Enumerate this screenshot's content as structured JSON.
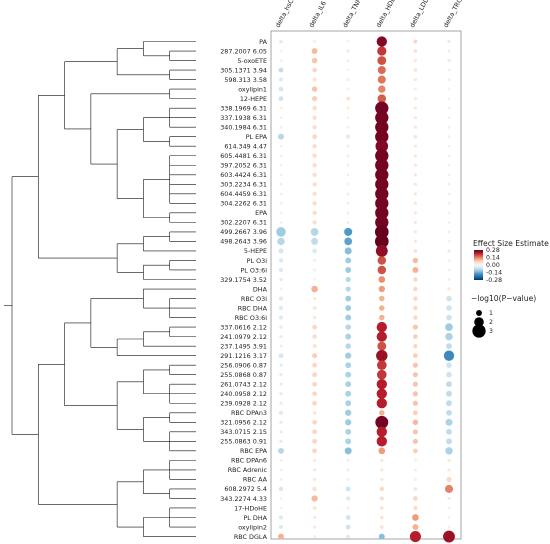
{
  "chart_data": {
    "type": "heatmap",
    "columns": [
      "delta_hsCRP",
      "delta_IL6",
      "delta_TNFR2",
      "delta_HDLC",
      "delta_LDLC",
      "delta_TRG"
    ],
    "rows": [
      {
        "label": "PA",
        "effect": [
          -0.03,
          0.02,
          0.01,
          0.26,
          0.06,
          0.03
        ],
        "logp": [
          0.4,
          0.2,
          0.2,
          2.2,
          0.5,
          0.3
        ]
      },
      {
        "label": "287.2007_6.05",
        "effect": [
          0.01,
          0.09,
          0.03,
          0.2,
          0.04,
          -0.02
        ],
        "logp": [
          0.2,
          1.0,
          0.3,
          1.9,
          0.4,
          0.2
        ]
      },
      {
        "label": "5-oxoETE",
        "effect": [
          0.02,
          0.08,
          0.02,
          0.18,
          0.03,
          0.03
        ],
        "logp": [
          0.2,
          0.9,
          0.2,
          1.8,
          0.3,
          0.3
        ]
      },
      {
        "label": "305.1371_3.94",
        "effect": [
          -0.07,
          0.06,
          0.01,
          0.16,
          0.04,
          0.02
        ],
        "logp": [
          0.7,
          0.7,
          0.2,
          1.6,
          0.4,
          0.2
        ]
      },
      {
        "label": "598.313_3.58",
        "effect": [
          -0.04,
          0.04,
          0.02,
          0.15,
          0.03,
          0.02
        ],
        "logp": [
          0.5,
          0.5,
          0.2,
          1.6,
          0.3,
          0.2
        ]
      },
      {
        "label": "oxylipin1",
        "effect": [
          -0.05,
          0.08,
          0.01,
          0.14,
          0.02,
          0.01
        ],
        "logp": [
          0.7,
          0.9,
          0.2,
          1.4,
          0.2,
          0.2
        ]
      },
      {
        "label": "12-HEPE",
        "effect": [
          -0.06,
          0.07,
          0.05,
          0.17,
          0.03,
          0.02
        ],
        "logp": [
          0.7,
          0.8,
          0.4,
          1.7,
          0.3,
          0.2
        ]
      },
      {
        "label": "338.1969_6.31",
        "effect": [
          0.02,
          0.05,
          0.02,
          0.27,
          0.03,
          0.02
        ],
        "logp": [
          0.2,
          0.6,
          0.2,
          3.0,
          0.3,
          0.2
        ]
      },
      {
        "label": "337.1938_6.31",
        "effect": [
          0.02,
          0.05,
          0.02,
          0.27,
          0.03,
          0.02
        ],
        "logp": [
          0.2,
          0.6,
          0.2,
          3.0,
          0.3,
          0.2
        ]
      },
      {
        "label": "340.1984_6.31",
        "effect": [
          0.02,
          0.05,
          0.02,
          0.27,
          0.03,
          0.02
        ],
        "logp": [
          0.2,
          0.6,
          0.2,
          3.0,
          0.3,
          0.2
        ]
      },
      {
        "label": "PL_EPA",
        "effect": [
          -0.08,
          0.06,
          -0.04,
          0.27,
          0.04,
          0.02
        ],
        "logp": [
          1.0,
          0.7,
          0.5,
          3.0,
          0.4,
          0.2
        ]
      },
      {
        "label": "614.349_4.47",
        "effect": [
          0.02,
          0.05,
          0.02,
          0.26,
          0.03,
          0.02
        ],
        "logp": [
          0.2,
          0.6,
          0.2,
          2.8,
          0.3,
          0.2
        ]
      },
      {
        "label": "605.4481_6.31",
        "effect": [
          0.02,
          0.05,
          0.02,
          0.27,
          0.03,
          0.02
        ],
        "logp": [
          0.2,
          0.6,
          0.2,
          3.0,
          0.3,
          0.2
        ]
      },
      {
        "label": "397.2052_6.31",
        "effect": [
          0.02,
          0.05,
          0.02,
          0.27,
          0.03,
          0.02
        ],
        "logp": [
          0.2,
          0.6,
          0.2,
          3.0,
          0.3,
          0.2
        ]
      },
      {
        "label": "603.4424_6.31",
        "effect": [
          0.02,
          0.05,
          0.02,
          0.27,
          0.03,
          0.02
        ],
        "logp": [
          0.2,
          0.6,
          0.2,
          3.0,
          0.3,
          0.2
        ]
      },
      {
        "label": "303.2234_6.31",
        "effect": [
          0.02,
          0.05,
          0.02,
          0.27,
          0.03,
          0.02
        ],
        "logp": [
          0.2,
          0.6,
          0.2,
          3.0,
          0.3,
          0.2
        ]
      },
      {
        "label": "604.4459_6.31",
        "effect": [
          0.02,
          0.05,
          0.02,
          0.27,
          0.03,
          0.02
        ],
        "logp": [
          0.2,
          0.6,
          0.2,
          3.0,
          0.3,
          0.2
        ]
      },
      {
        "label": "304.2262_6.31",
        "effect": [
          0.02,
          0.05,
          0.02,
          0.27,
          0.03,
          0.02
        ],
        "logp": [
          0.2,
          0.6,
          0.2,
          3.0,
          0.3,
          0.2
        ]
      },
      {
        "label": "EPA",
        "effect": [
          0.02,
          0.05,
          0.02,
          0.27,
          0.03,
          0.02
        ],
        "logp": [
          0.2,
          0.6,
          0.2,
          3.0,
          0.3,
          0.2
        ]
      },
      {
        "label": "302.2207_6.31",
        "effect": [
          0.02,
          0.05,
          0.02,
          0.27,
          0.03,
          0.02
        ],
        "logp": [
          0.2,
          0.6,
          0.2,
          3.0,
          0.3,
          0.2
        ]
      },
      {
        "label": "499.2667_3.96",
        "effect": [
          -0.1,
          -0.08,
          -0.16,
          0.28,
          0.03,
          0.02
        ],
        "logp": [
          2.0,
          1.5,
          1.6,
          3.1,
          0.3,
          0.2
        ]
      },
      {
        "label": "498.2643_3.96",
        "effect": [
          -0.08,
          -0.07,
          -0.15,
          0.28,
          0.03,
          0.02
        ],
        "logp": [
          1.4,
          1.3,
          1.5,
          3.1,
          0.3,
          0.2
        ]
      },
      {
        "label": "5-HEPE",
        "effect": [
          -0.05,
          -0.04,
          -0.12,
          0.25,
          0.04,
          0.03
        ],
        "logp": [
          0.8,
          0.7,
          1.3,
          2.6,
          0.4,
          0.3
        ]
      },
      {
        "label": "PL_O3i",
        "effect": [
          -0.04,
          0.02,
          -0.1,
          0.18,
          0.09,
          0.02
        ],
        "logp": [
          0.6,
          0.2,
          1.0,
          1.7,
          0.9,
          0.2
        ]
      },
      {
        "label": "PL_O3:6i",
        "effect": [
          -0.04,
          0.02,
          -0.1,
          0.18,
          0.1,
          0.02
        ],
        "logp": [
          0.6,
          0.2,
          1.0,
          1.7,
          1.0,
          0.2
        ]
      },
      {
        "label": "329.1754_3.52",
        "effect": [
          -0.03,
          0.01,
          -0.08,
          0.13,
          0.06,
          0.02
        ],
        "logp": [
          0.3,
          0.2,
          0.8,
          1.2,
          0.6,
          0.2
        ]
      },
      {
        "label": "DHA",
        "effect": [
          0.02,
          0.1,
          -0.08,
          0.12,
          0.06,
          0.03
        ],
        "logp": [
          0.2,
          1.2,
          0.8,
          1.1,
          0.6,
          0.3
        ]
      },
      {
        "label": "RBC_O3i",
        "effect": [
          -0.04,
          0.03,
          -0.1,
          0.1,
          0.06,
          -0.06
        ],
        "logp": [
          0.5,
          0.3,
          1.0,
          0.9,
          0.6,
          0.9
        ]
      },
      {
        "label": "RBC_DHA",
        "effect": [
          -0.04,
          0.04,
          -0.1,
          0.1,
          0.06,
          -0.06
        ],
        "logp": [
          0.5,
          0.4,
          1.0,
          0.9,
          0.6,
          0.9
        ]
      },
      {
        "label": "RBC_O3:6i",
        "effect": [
          -0.04,
          0.03,
          -0.1,
          0.1,
          0.06,
          -0.06
        ],
        "logp": [
          0.5,
          0.3,
          1.0,
          0.9,
          0.6,
          0.9
        ]
      },
      {
        "label": "337.0616_2.12",
        "effect": [
          -0.03,
          0.06,
          -0.08,
          0.22,
          0.08,
          -0.1
        ],
        "logp": [
          0.3,
          0.7,
          0.9,
          2.2,
          0.8,
          1.5
        ]
      },
      {
        "label": "241.0979_2.12",
        "effect": [
          -0.03,
          0.05,
          -0.09,
          0.22,
          0.07,
          -0.09
        ],
        "logp": [
          0.3,
          0.6,
          1.0,
          2.2,
          0.7,
          1.4
        ]
      },
      {
        "label": "237.1495_3.91",
        "effect": [
          -0.02,
          0.04,
          -0.08,
          0.18,
          0.06,
          -0.07
        ],
        "logp": [
          0.2,
          0.5,
          0.9,
          1.8,
          0.6,
          1.0
        ]
      },
      {
        "label": "291.1216_3.17",
        "effect": [
          -0.05,
          0.07,
          -0.1,
          0.24,
          0.07,
          -0.18
        ],
        "logp": [
          0.7,
          0.8,
          1.1,
          2.5,
          0.7,
          2.2
        ]
      },
      {
        "label": "256.0906_0.87",
        "effect": [
          -0.03,
          0.06,
          -0.09,
          0.2,
          0.08,
          -0.06
        ],
        "logp": [
          0.3,
          0.7,
          1.0,
          2.0,
          0.8,
          0.9
        ]
      },
      {
        "label": "255.0868_0.87",
        "effect": [
          -0.03,
          0.06,
          -0.09,
          0.2,
          0.08,
          -0.06
        ],
        "logp": [
          0.3,
          0.7,
          1.0,
          2.0,
          0.8,
          0.9
        ]
      },
      {
        "label": "261.0743_2.12",
        "effect": [
          -0.03,
          0.06,
          -0.09,
          0.22,
          0.08,
          -0.07
        ],
        "logp": [
          0.3,
          0.7,
          1.0,
          2.2,
          0.8,
          1.0
        ]
      },
      {
        "label": "240.0958_2.12",
        "effect": [
          -0.03,
          0.06,
          -0.09,
          0.22,
          0.08,
          -0.07
        ],
        "logp": [
          0.3,
          0.7,
          1.0,
          2.2,
          0.8,
          1.0
        ]
      },
      {
        "label": "239.0928_2.12",
        "effect": [
          -0.03,
          0.06,
          -0.09,
          0.22,
          0.08,
          -0.07
        ],
        "logp": [
          0.3,
          0.7,
          1.0,
          2.2,
          0.8,
          1.0
        ]
      },
      {
        "label": "RBC_DPAn3",
        "effect": [
          -0.04,
          0.04,
          -0.1,
          0.1,
          0.07,
          -0.07
        ],
        "logp": [
          0.5,
          0.4,
          1.1,
          0.9,
          0.7,
          1.0
        ]
      },
      {
        "label": "321.0956_2.12",
        "effect": [
          -0.03,
          0.06,
          -0.1,
          0.27,
          0.09,
          -0.09
        ],
        "logp": [
          0.3,
          0.7,
          1.1,
          2.9,
          0.9,
          1.3
        ]
      },
      {
        "label": "343.0715_2.15",
        "effect": [
          -0.03,
          0.06,
          -0.09,
          0.22,
          0.08,
          -0.07
        ],
        "logp": [
          0.3,
          0.7,
          1.0,
          2.2,
          0.8,
          1.0
        ]
      },
      {
        "label": "255.0863_0.91",
        "effect": [
          -0.03,
          0.06,
          -0.09,
          0.22,
          0.08,
          -0.07
        ],
        "logp": [
          0.3,
          0.7,
          1.0,
          2.2,
          0.8,
          1.0
        ]
      },
      {
        "label": "RBC_EPA",
        "effect": [
          -0.08,
          0.06,
          -0.12,
          0.12,
          0.07,
          -0.09
        ],
        "logp": [
          1.0,
          0.7,
          1.3,
          1.2,
          0.7,
          1.4
        ]
      },
      {
        "label": "RBC_DPAn6",
        "effect": [
          0.02,
          0.03,
          0.02,
          0.03,
          0.02,
          0.03
        ],
        "logp": [
          0.2,
          0.3,
          0.2,
          0.3,
          0.2,
          0.3
        ]
      },
      {
        "label": "RBC_Adrenic",
        "effect": [
          0.02,
          0.03,
          0.02,
          0.03,
          0.02,
          0.03
        ],
        "logp": [
          0.2,
          0.3,
          0.2,
          0.3,
          0.2,
          0.3
        ]
      },
      {
        "label": "RBC_AA",
        "effect": [
          0.02,
          0.03,
          0.02,
          0.03,
          0.02,
          0.06
        ],
        "logp": [
          0.2,
          0.3,
          0.2,
          0.3,
          0.2,
          0.8
        ]
      },
      {
        "label": "608.2972_5.4",
        "effect": [
          -0.05,
          0.05,
          -0.06,
          0.06,
          0.04,
          0.14
        ],
        "logp": [
          0.6,
          0.6,
          0.7,
          0.6,
          0.4,
          1.6
        ]
      },
      {
        "label": "343.2274_4.33",
        "effect": [
          0.02,
          0.09,
          -0.04,
          0.05,
          0.06,
          0.03
        ],
        "logp": [
          0.2,
          1.1,
          0.5,
          0.5,
          0.7,
          0.3
        ]
      },
      {
        "label": "17-HDoHE",
        "effect": [
          0.01,
          0.04,
          0.02,
          0.04,
          0.05,
          0.02
        ],
        "logp": [
          0.1,
          0.4,
          0.2,
          0.4,
          0.6,
          0.2
        ]
      },
      {
        "label": "PL_DHA",
        "effect": [
          -0.04,
          0.03,
          -0.06,
          0.04,
          0.12,
          0.02
        ],
        "logp": [
          0.5,
          0.3,
          0.7,
          0.4,
          1.2,
          0.2
        ]
      },
      {
        "label": "oxylipin2",
        "effect": [
          -0.04,
          0.03,
          -0.06,
          0.04,
          0.1,
          0.02
        ],
        "logp": [
          0.5,
          0.3,
          0.7,
          0.4,
          1.0,
          0.2
        ]
      },
      {
        "label": "RBC_DGLA",
        "effect": [
          0.1,
          0.02,
          -0.04,
          -0.12,
          0.22,
          0.24
        ],
        "logp": [
          1.0,
          0.2,
          0.4,
          1.0,
          2.4,
          2.6
        ]
      }
    ],
    "legend": {
      "color_title": "Effect Size Estimate",
      "color_ticks": [
        "0.28",
        "0.14",
        "0.00",
        "-0.14",
        "-0.28"
      ],
      "color_range": [
        -0.28,
        0.28
      ],
      "palette_hex": [
        "#053061",
        "#2166ac",
        "#4393c3",
        "#92c5de",
        "#d1e5f0",
        "#f7f7f7",
        "#fddbc7",
        "#f4a582",
        "#d6604d",
        "#b2182b",
        "#67001f"
      ],
      "size_title": "−log10(P−value)",
      "size_values": [
        1,
        2,
        3
      ],
      "size_labels": [
        "1",
        "2",
        "3"
      ]
    }
  }
}
